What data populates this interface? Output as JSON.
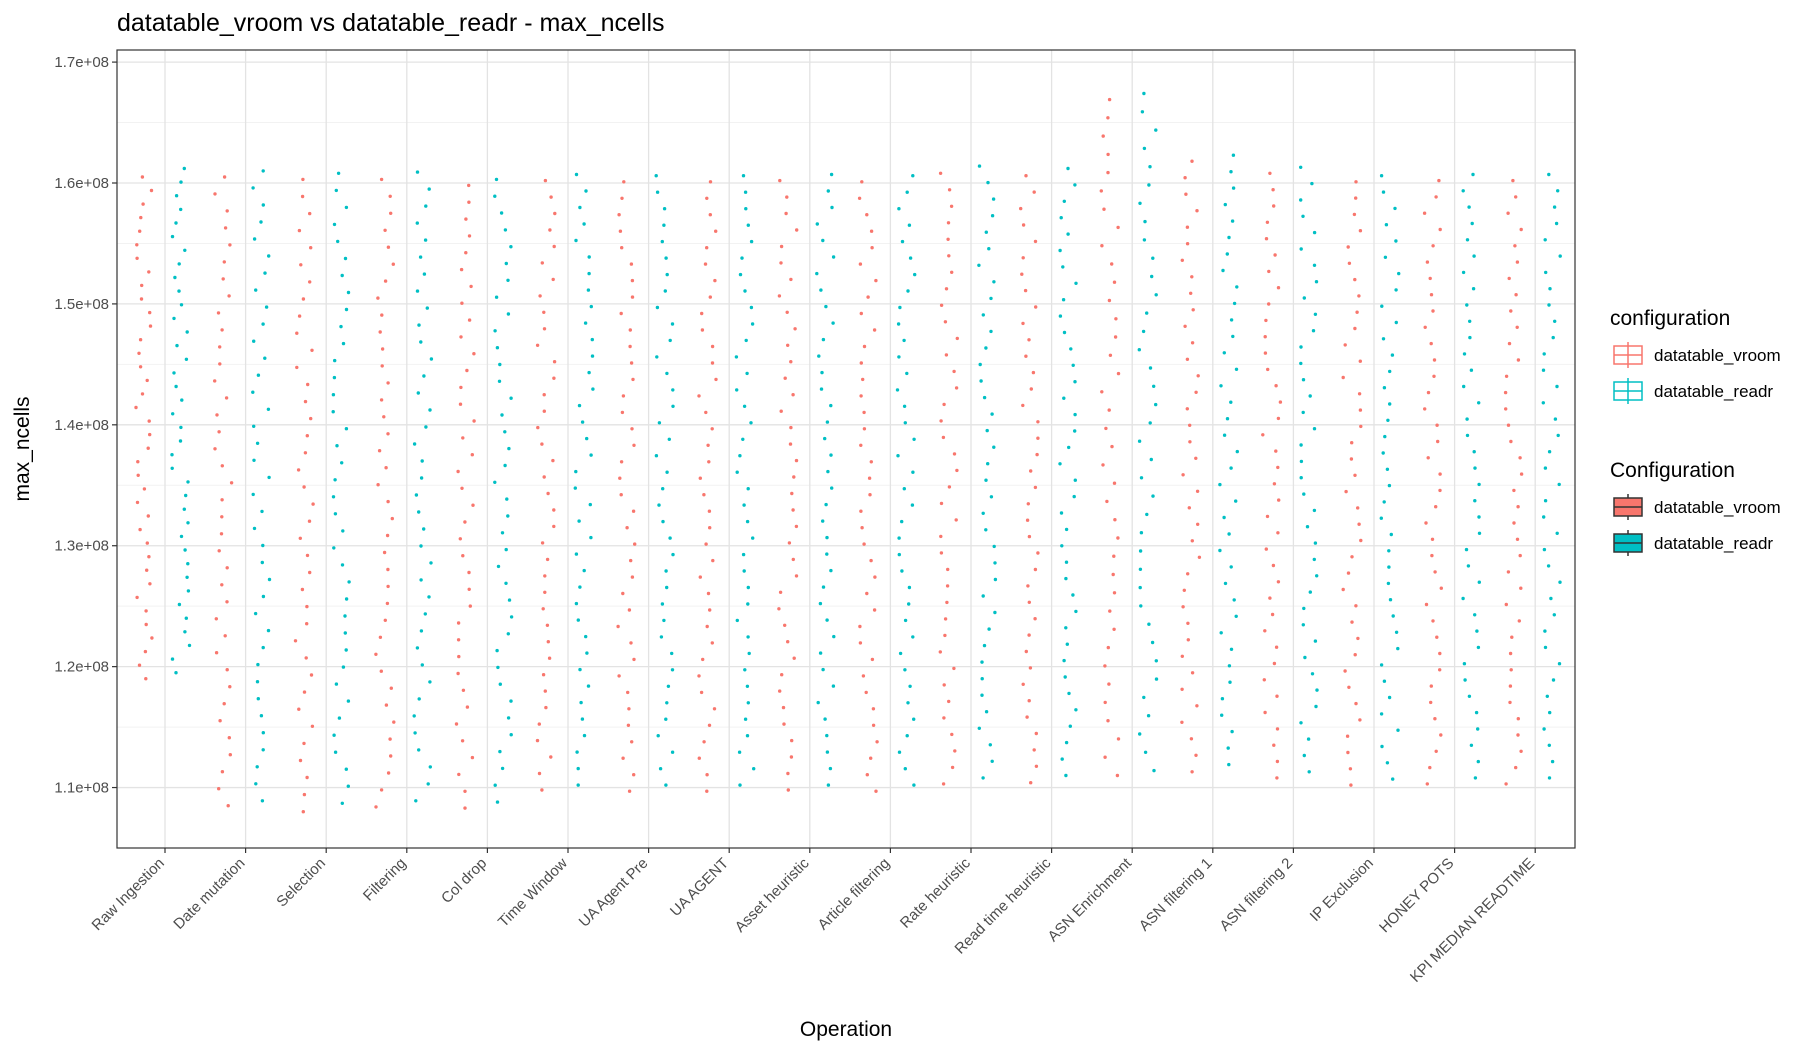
{
  "chart_data": {
    "type": "scatter",
    "title": "datatable_vroom vs datatable_readr - max_ncells",
    "xlabel": "Operation",
    "ylabel": "max_ncells",
    "ylim": [
      105000000,
      171000000
    ],
    "yticks": [
      {
        "value": 110000000,
        "label": "1.1e+08"
      },
      {
        "value": 120000000,
        "label": "1.2e+08"
      },
      {
        "value": 130000000,
        "label": "1.3e+08"
      },
      {
        "value": 140000000,
        "label": "1.4e+08"
      },
      {
        "value": 150000000,
        "label": "1.5e+08"
      },
      {
        "value": 160000000,
        "label": "1.6e+08"
      },
      {
        "value": 170000000,
        "label": "1.7e+08"
      }
    ],
    "grid": true,
    "legend_position": "right",
    "categories": [
      "Raw Ingestion",
      "Date mutation",
      "Selection",
      "Filtering",
      "Col drop",
      "Time Window",
      "UA Agent Pre",
      "UA AGENT",
      "Asset heuristic",
      "Article filtering",
      "Rate heuristic",
      "Read time heuristic",
      "ASN Enrichment",
      "ASN filtering 1",
      "ASN filtering 2",
      "IP Exclusion",
      "HONEY POTS",
      "KPI MEDIAN READTIME"
    ],
    "series": [
      {
        "name": "datatable_vroom",
        "color": "#F8766D",
        "ranges": [
          [
            119000000,
            160500000
          ],
          [
            108500000,
            160500000
          ],
          [
            108000000,
            160300000
          ],
          [
            108400000,
            160300000
          ],
          [
            108300000,
            159800000
          ],
          [
            109800000,
            160200000
          ],
          [
            109700000,
            160100000
          ],
          [
            109700000,
            160100000
          ],
          [
            109800000,
            160200000
          ],
          [
            109700000,
            160100000
          ],
          [
            110300000,
            160800000
          ],
          [
            110400000,
            160600000
          ],
          [
            111000000,
            166900000
          ],
          [
            111300000,
            161800000
          ],
          [
            110800000,
            160800000
          ],
          [
            110200000,
            160100000
          ],
          [
            110300000,
            160200000
          ],
          [
            110300000,
            160200000
          ]
        ]
      },
      {
        "name": "datatable_readr",
        "color": "#00BFC4",
        "ranges": [
          [
            119500000,
            161200000
          ],
          [
            108900000,
            161000000
          ],
          [
            108700000,
            160800000
          ],
          [
            108900000,
            160900000
          ],
          [
            108800000,
            160300000
          ],
          [
            110200000,
            160700000
          ],
          [
            110200000,
            160600000
          ],
          [
            110200000,
            160600000
          ],
          [
            110200000,
            160700000
          ],
          [
            110200000,
            160600000
          ],
          [
            110800000,
            161400000
          ],
          [
            111000000,
            161200000
          ],
          [
            111400000,
            167400000
          ],
          [
            111900000,
            162300000
          ],
          [
            111300000,
            161300000
          ],
          [
            110700000,
            160600000
          ],
          [
            110800000,
            160700000
          ],
          [
            110800000,
            160700000
          ]
        ]
      }
    ],
    "legends": [
      {
        "title": "configuration",
        "style": "outline",
        "items": [
          "datatable_vroom",
          "datatable_readr"
        ]
      },
      {
        "title": "Configuration",
        "style": "filled",
        "items": [
          "datatable_vroom",
          "datatable_readr"
        ]
      }
    ]
  }
}
